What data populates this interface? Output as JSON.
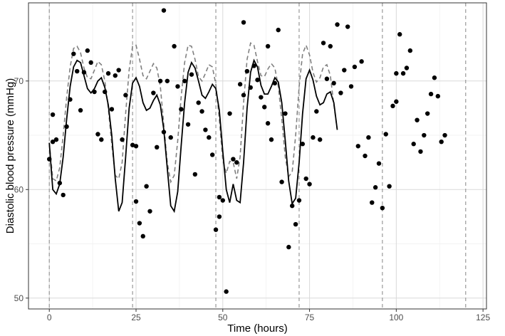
{
  "chart_data": {
    "type": "scatter",
    "title": "",
    "xlabel": "Time (hours)",
    "ylabel": "Diastolic blood pressure (mmHg)",
    "xlim": [
      -6,
      126
    ],
    "ylim": [
      49,
      77.2
    ],
    "x_ticks": [
      0,
      25,
      50,
      75,
      100,
      125
    ],
    "x_tick_labels": [
      "0",
      "25",
      "50",
      "75",
      "100",
      "125"
    ],
    "y_ticks": [
      50,
      60,
      70
    ],
    "y_tick_labels": [
      "50",
      "60",
      "70"
    ],
    "grid": true,
    "legend": "none",
    "vertical_reference_lines": [
      0,
      24,
      48,
      72,
      96,
      120
    ],
    "series": [
      {
        "style": "points",
        "points": [
          [
            0,
            62.8
          ],
          [
            1,
            66.9
          ],
          [
            1,
            64.4
          ],
          [
            2,
            64.6
          ],
          [
            3,
            60.6
          ],
          [
            4,
            59.5
          ],
          [
            5,
            65.8
          ],
          [
            6,
            68.3
          ],
          [
            7,
            72.5
          ],
          [
            8,
            70.9
          ],
          [
            9,
            67.3
          ],
          [
            10,
            70.8
          ],
          [
            11,
            72.8
          ],
          [
            12,
            71.7
          ],
          [
            13,
            69.0
          ],
          [
            14,
            65.1
          ],
          [
            15,
            64.6
          ],
          [
            16,
            69.0
          ],
          [
            17,
            70.7
          ],
          [
            18,
            67.4
          ],
          [
            19,
            70.5
          ],
          [
            20,
            71.0
          ],
          [
            21,
            64.6
          ],
          [
            22,
            68.7
          ],
          [
            24,
            64.1
          ],
          [
            25,
            64.0
          ],
          [
            25,
            58.9
          ],
          [
            26,
            56.9
          ],
          [
            27,
            55.7
          ],
          [
            28,
            60.3
          ],
          [
            29,
            58.0
          ],
          [
            30,
            68.9
          ],
          [
            31,
            63.9
          ],
          [
            32,
            70.0
          ],
          [
            33,
            65.3
          ],
          [
            33,
            76.5
          ],
          [
            34,
            70.0
          ],
          [
            35,
            64.8
          ],
          [
            36,
            73.2
          ],
          [
            37,
            69.5
          ],
          [
            38,
            67.4
          ],
          [
            39,
            70.0
          ],
          [
            40,
            66.0
          ],
          [
            41,
            70.6
          ],
          [
            42,
            61.4
          ],
          [
            43,
            68.0
          ],
          [
            44,
            67.2
          ],
          [
            45,
            65.5
          ],
          [
            46,
            64.8
          ],
          [
            47,
            63.2
          ],
          [
            48,
            56.3
          ],
          [
            49,
            57.5
          ],
          [
            49,
            59.3
          ],
          [
            50,
            59.0
          ],
          [
            51,
            50.6
          ],
          [
            52,
            67.0
          ],
          [
            53,
            62.8
          ],
          [
            54,
            62.5
          ],
          [
            55,
            69.7
          ],
          [
            56,
            68.7
          ],
          [
            56,
            75.4
          ],
          [
            57,
            70.9
          ],
          [
            58,
            69.4
          ],
          [
            59,
            71.4
          ],
          [
            60,
            70.1
          ],
          [
            61,
            68.5
          ],
          [
            62,
            67.6
          ],
          [
            63,
            66.1
          ],
          [
            63,
            73.2
          ],
          [
            64,
            64.6
          ],
          [
            65,
            69.8
          ],
          [
            66,
            74.7
          ],
          [
            67,
            60.7
          ],
          [
            68,
            67.0
          ],
          [
            69,
            54.7
          ],
          [
            70,
            58.5
          ],
          [
            71,
            56.8
          ],
          [
            72,
            59.0
          ],
          [
            73,
            64.2
          ],
          [
            74,
            61.0
          ],
          [
            75,
            60.5
          ],
          [
            76,
            64.8
          ],
          [
            77,
            67.2
          ],
          [
            78,
            64.6
          ],
          [
            79,
            73.5
          ],
          [
            80,
            70.2
          ],
          [
            81,
            73.2
          ],
          [
            82,
            69.8
          ],
          [
            83,
            75.2
          ],
          [
            84,
            68.9
          ],
          [
            85,
            71.0
          ],
          [
            86,
            75.0
          ],
          [
            87,
            69.5
          ],
          [
            88,
            71.3
          ],
          [
            89,
            64.0
          ],
          [
            90,
            71.8
          ],
          [
            91,
            63.1
          ],
          [
            92,
            64.8
          ],
          [
            93,
            58.8
          ],
          [
            94,
            60.2
          ],
          [
            95,
            62.4
          ],
          [
            96,
            58.3
          ],
          [
            97,
            65.1
          ],
          [
            98,
            60.3
          ],
          [
            99,
            67.7
          ],
          [
            100,
            70.7
          ],
          [
            100,
            68.1
          ],
          [
            101,
            74.3
          ],
          [
            102,
            70.7
          ],
          [
            103,
            71.2
          ],
          [
            104,
            72.8
          ],
          [
            105,
            64.2
          ],
          [
            106,
            66.4
          ],
          [
            107,
            63.5
          ],
          [
            108,
            65.0
          ],
          [
            109,
            67.0
          ],
          [
            110,
            68.8
          ],
          [
            111,
            70.3
          ],
          [
            112,
            68.6
          ],
          [
            113,
            64.4
          ],
          [
            114,
            65.0
          ]
        ]
      },
      {
        "style": "solid-line",
        "points": [
          [
            0,
            64.3
          ],
          [
            1,
            60.0
          ],
          [
            2,
            59.6
          ],
          [
            3,
            60.5
          ],
          [
            4,
            63.0
          ],
          [
            5,
            66.5
          ],
          [
            6,
            69.5
          ],
          [
            7,
            71.3
          ],
          [
            8,
            71.9
          ],
          [
            9,
            71.7
          ],
          [
            10,
            70.5
          ],
          [
            11,
            69.3
          ],
          [
            12,
            68.9
          ],
          [
            13,
            69.3
          ],
          [
            14,
            70.0
          ],
          [
            15,
            70.3
          ],
          [
            16,
            69.4
          ],
          [
            17,
            67.8
          ],
          [
            18,
            65.0
          ],
          [
            19,
            61.0
          ],
          [
            20,
            58.0
          ],
          [
            21,
            58.8
          ],
          [
            22,
            63.0
          ],
          [
            23,
            67.5
          ],
          [
            24,
            69.8
          ],
          [
            25,
            70.3
          ],
          [
            26,
            69.5
          ],
          [
            27,
            68.0
          ],
          [
            28,
            67.3
          ],
          [
            29,
            67.5
          ],
          [
            30,
            68.2
          ],
          [
            31,
            68.7
          ],
          [
            32,
            67.8
          ],
          [
            33,
            65.5
          ],
          [
            34,
            62.0
          ],
          [
            35,
            58.5
          ],
          [
            36,
            58.0
          ],
          [
            37,
            59.8
          ],
          [
            38,
            64.0
          ],
          [
            39,
            68.0
          ],
          [
            40,
            70.8
          ],
          [
            41,
            71.7
          ],
          [
            42,
            71.2
          ],
          [
            43,
            70.0
          ],
          [
            44,
            68.7
          ],
          [
            45,
            68.4
          ],
          [
            46,
            69.0
          ],
          [
            47,
            69.7
          ],
          [
            48,
            69.3
          ],
          [
            49,
            67.3
          ],
          [
            50,
            63.5
          ],
          [
            51,
            60.0
          ],
          [
            52,
            58.8
          ],
          [
            53,
            60.5
          ],
          [
            54,
            59.0
          ],
          [
            55,
            58.8
          ],
          [
            56,
            62.5
          ],
          [
            57,
            67.5
          ],
          [
            58,
            70.8
          ],
          [
            59,
            71.9
          ],
          [
            60,
            71.3
          ],
          [
            61,
            69.6
          ],
          [
            62,
            68.8
          ],
          [
            63,
            68.8
          ],
          [
            64,
            69.5
          ],
          [
            65,
            70.3
          ],
          [
            66,
            69.9
          ],
          [
            67,
            68.0
          ],
          [
            68,
            64.5
          ],
          [
            69,
            60.8
          ],
          [
            70,
            58.7
          ],
          [
            71,
            59.2
          ],
          [
            72,
            62.5
          ],
          [
            73,
            67.0
          ],
          [
            74,
            70.2
          ],
          [
            75,
            71.0
          ],
          [
            76,
            70.1
          ],
          [
            77,
            68.6
          ],
          [
            78,
            67.8
          ],
          [
            79,
            68.0
          ],
          [
            80,
            68.8
          ],
          [
            81,
            69.0
          ],
          [
            82,
            68.0
          ],
          [
            83,
            65.5
          ]
        ]
      },
      {
        "style": "dashed-line",
        "points": [
          [
            0,
            64.3
          ],
          [
            1,
            61.0
          ],
          [
            2,
            60.8
          ],
          [
            3,
            62.0
          ],
          [
            4,
            65.0
          ],
          [
            5,
            68.5
          ],
          [
            6,
            71.3
          ],
          [
            7,
            73.0
          ],
          [
            8,
            73.2
          ],
          [
            9,
            72.6
          ],
          [
            10,
            71.2
          ],
          [
            11,
            70.3
          ],
          [
            12,
            70.2
          ],
          [
            13,
            71.0
          ],
          [
            14,
            71.8
          ],
          [
            15,
            71.5
          ],
          [
            16,
            70.0
          ],
          [
            17,
            67.5
          ],
          [
            18,
            64.2
          ],
          [
            19,
            61.3
          ],
          [
            20,
            61.0
          ],
          [
            21,
            62.5
          ],
          [
            22,
            67.0
          ],
          [
            23,
            71.0
          ],
          [
            24,
            73.2
          ],
          [
            25,
            73.3
          ],
          [
            26,
            72.0
          ],
          [
            27,
            70.5
          ],
          [
            28,
            70.2
          ],
          [
            29,
            70.9
          ],
          [
            30,
            71.6
          ],
          [
            31,
            71.2
          ],
          [
            32,
            69.5
          ],
          [
            33,
            66.0
          ],
          [
            34,
            62.5
          ],
          [
            35,
            60.7
          ],
          [
            36,
            61.3
          ],
          [
            37,
            64.5
          ],
          [
            38,
            68.5
          ],
          [
            39,
            71.7
          ],
          [
            40,
            73.3
          ],
          [
            41,
            73.2
          ],
          [
            42,
            72.0
          ],
          [
            43,
            70.4
          ],
          [
            44,
            70.0
          ],
          [
            45,
            70.7
          ],
          [
            46,
            71.5
          ],
          [
            47,
            71.3
          ],
          [
            48,
            69.7
          ],
          [
            49,
            66.5
          ],
          [
            50,
            62.7
          ],
          [
            51,
            61.5
          ],
          [
            52,
            62.6
          ],
          [
            53,
            62.5
          ],
          [
            54,
            61.0
          ],
          [
            55,
            63.0
          ],
          [
            56,
            68.0
          ],
          [
            57,
            72.0
          ],
          [
            58,
            73.5
          ],
          [
            59,
            73.3
          ],
          [
            60,
            71.8
          ],
          [
            61,
            70.5
          ],
          [
            62,
            70.4
          ],
          [
            63,
            71.1
          ],
          [
            64,
            71.6
          ],
          [
            65,
            71.2
          ],
          [
            66,
            69.5
          ],
          [
            67,
            66.5
          ],
          [
            68,
            63.0
          ],
          [
            69,
            61.2
          ],
          [
            70,
            61.6
          ],
          [
            71,
            65.0
          ],
          [
            72,
            69.5
          ],
          [
            73,
            72.5
          ],
          [
            74,
            73.3
          ],
          [
            75,
            72.4
          ],
          [
            76,
            70.8
          ],
          [
            77,
            69.9
          ],
          [
            78,
            70.3
          ],
          [
            79,
            71.3
          ],
          [
            80,
            71.5
          ],
          [
            81,
            70.5
          ],
          [
            82,
            67.8
          ],
          [
            83,
            65.5
          ]
        ]
      }
    ]
  },
  "colors": {
    "background": "#ffffff",
    "grid_major": "#d9d9d9",
    "grid_minor": "#efefef",
    "points": "#000000",
    "solid_line": "#000000",
    "dashed_line": "#808080",
    "reference_lines": "#999999",
    "axis_text": "#4d4d4d",
    "border": "#333333"
  }
}
